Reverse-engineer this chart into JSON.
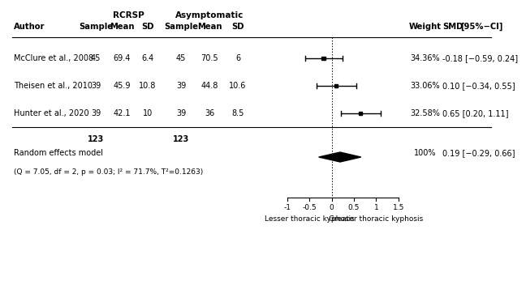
{
  "group1_label": "RCRSP",
  "group2_label": "Asymptomatic",
  "studies": [
    {
      "author": "McClure et al., 2008",
      "s1": 45,
      "m1": 69.4,
      "sd1": 6.4,
      "s2": 45,
      "m2": 70.5,
      "sd2": 6,
      "weight": "34.36%",
      "smd": -0.18,
      "ci_low": -0.59,
      "ci_high": 0.24,
      "smd_str": "-0.18 [−0.59, 0.24]"
    },
    {
      "author": "Theisen et al., 2010",
      "s1": 39,
      "m1": 45.9,
      "sd1": 10.8,
      "s2": 39,
      "m2": 44.8,
      "sd2": 10.6,
      "weight": "33.06%",
      "smd": 0.1,
      "ci_low": -0.34,
      "ci_high": 0.55,
      "smd_str": "0.10 [−0.34, 0.55]"
    },
    {
      "author": "Hunter et al., 2020",
      "s1": 39,
      "m1": 42.1,
      "sd1": 10,
      "s2": 39,
      "m2": 36,
      "sd2": 8.5,
      "weight": "32.58%",
      "smd": 0.65,
      "ci_low": 0.2,
      "ci_high": 1.11,
      "smd_str": "0.65 [0.20, 1.11]"
    }
  ],
  "total_s1": 123,
  "total_s2": 123,
  "random_smd": 0.19,
  "random_ci_low": -0.29,
  "random_ci_high": 0.66,
  "random_weight": "100%",
  "random_smd_str": "0.19 [−0.29, 0.66]",
  "stats_line": "(Q = 7.05, df = 2, p = 0.03; I² = 71.7%, T²=0.1263)",
  "xmin": -1.25,
  "xmax": 1.85,
  "xticks": [
    -1,
    -0.5,
    0,
    0.5,
    1,
    1.5
  ],
  "xlabel_left": "Lesser thoracic kyphosis",
  "xlabel_right": "Greater thoracic kyphosis",
  "background_color": "#ffffff"
}
